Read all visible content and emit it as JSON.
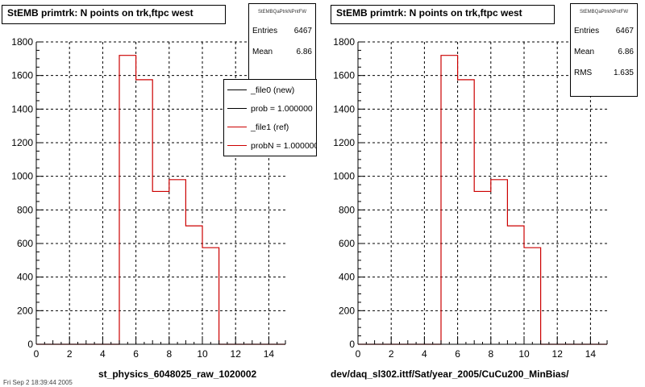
{
  "chart_data": [
    {
      "type": "bar",
      "title": "StEMB primtrk: N points on trk,ftpc west",
      "stats": {
        "name": "StEMBQaPtrkNPntFW",
        "rows": [
          {
            "label": "Entries",
            "value": "6467"
          },
          {
            "label": "Mean",
            "value": "6.86"
          }
        ]
      },
      "legend": [
        {
          "label": "_file0 (new)",
          "color": "#000000"
        },
        {
          "label": "prob = 1.000000",
          "color": "#000000"
        },
        {
          "label": "_file1 (ref)",
          "color": "#cc0000"
        },
        {
          "label": "probN = 1.000000",
          "color": "#cc0000"
        }
      ],
      "caption": "st_physics_6048025_raw_1020002",
      "xlim": [
        0,
        15
      ],
      "ylim": [
        0,
        1800
      ],
      "xticks": [
        0,
        2,
        4,
        6,
        8,
        10,
        12,
        14
      ],
      "yticks": [
        0,
        200,
        400,
        600,
        800,
        1000,
        1200,
        1400,
        1600,
        1800
      ],
      "grid": true,
      "bin_edges": [
        0,
        1,
        2,
        3,
        4,
        5,
        6,
        7,
        8,
        9,
        10,
        11,
        12,
        13,
        14,
        15
      ],
      "values": [
        0,
        0,
        0,
        0,
        0,
        1720,
        1575,
        910,
        980,
        705,
        575,
        0,
        0,
        0,
        0
      ],
      "line_color": "#cc0000"
    },
    {
      "type": "bar",
      "title": "StEMB primtrk: N points on trk,ftpc west",
      "stats": {
        "name": "StEMBQaPtrkNPntFW",
        "rows": [
          {
            "label": "Entries",
            "value": "6467"
          },
          {
            "label": "Mean",
            "value": "6.86"
          },
          {
            "label": "RMS",
            "value": "1.635"
          }
        ]
      },
      "caption": "dev/daq_sl302.ittf/Sat/year_2005/CuCu200_MinBias/",
      "xlim": [
        0,
        15
      ],
      "ylim": [
        0,
        1800
      ],
      "xticks": [
        0,
        2,
        4,
        6,
        8,
        10,
        12,
        14
      ],
      "yticks": [
        0,
        200,
        400,
        600,
        800,
        1000,
        1200,
        1400,
        1600,
        1800
      ],
      "grid": true,
      "bin_edges": [
        0,
        1,
        2,
        3,
        4,
        5,
        6,
        7,
        8,
        9,
        10,
        11,
        12,
        13,
        14,
        15
      ],
      "values": [
        0,
        0,
        0,
        0,
        0,
        1720,
        1575,
        910,
        980,
        705,
        575,
        0,
        0,
        0,
        0
      ],
      "line_color": "#cc0000"
    }
  ],
  "footer_stamp": "Fri Sep 2 18:39:44 2005"
}
